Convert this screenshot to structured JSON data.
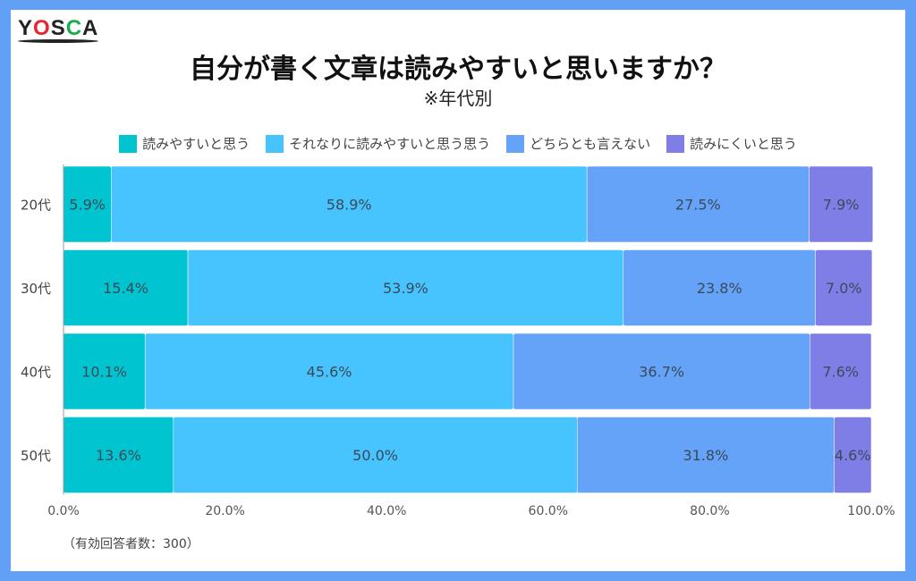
{
  "logo": "YOSCA",
  "chart_data": {
    "type": "bar",
    "orientation": "horizontal",
    "stacked": true,
    "title": "自分が書く文章は読みやすいと思いますか？",
    "subtitle": "※年代別",
    "categories": [
      "20代",
      "30代",
      "40代",
      "50代"
    ],
    "series": [
      {
        "name": "読みやすいと思う",
        "color": "#00c4cf",
        "values": [
          5.9,
          15.4,
          10.1,
          13.6
        ]
      },
      {
        "name": "それなりに読みやすいと思う思う",
        "color": "#47c3fd",
        "values": [
          58.9,
          53.9,
          45.6,
          50.0
        ]
      },
      {
        "name": "どちらとも言えない",
        "color": "#64a3f7",
        "values": [
          27.5,
          23.8,
          36.7,
          31.8
        ]
      },
      {
        "name": "読みにくいと思う",
        "color": "#7f7ee6",
        "values": [
          7.9,
          7.0,
          7.6,
          4.6
        ]
      }
    ],
    "xlim": [
      0,
      100
    ],
    "xticks": [
      "0.0%",
      "20.0%",
      "40.0%",
      "60.0%",
      "80.0%",
      "100.0%"
    ],
    "legend": "top",
    "note": "（有効回答者数：300）"
  }
}
